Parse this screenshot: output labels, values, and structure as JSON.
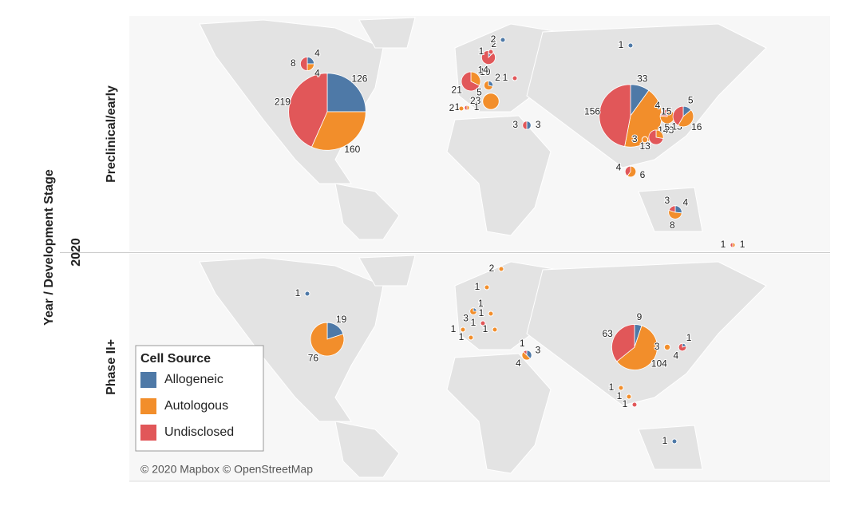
{
  "axis_title": "Year   /  Development Stage",
  "year": "2020",
  "legend": {
    "title": "Cell Source",
    "series": [
      {
        "name": "Allogeneic",
        "color": "#4e79a7"
      },
      {
        "name": "Autologous",
        "color": "#f28e2b"
      },
      {
        "name": "Undisclosed",
        "color": "#e15759"
      }
    ]
  },
  "attribution": "© 2020 Mapbox © OpenStreetMap",
  "panels": [
    {
      "label": "Preclinical/early",
      "pies": [
        {
          "values": [
            126,
            160,
            219
          ]
        },
        {
          "values": [
            4,
            4,
            8
          ]
        },
        {
          "values": [
            null,
            10,
            21
          ]
        },
        {
          "values": [
            2,
            5,
            null
          ]
        },
        {
          "values": [
            2,
            null,
            14
          ]
        },
        {
          "values": [
            2,
            null,
            null
          ]
        },
        {
          "values": [
            null,
            null,
            1
          ]
        },
        {
          "values": [
            null,
            null,
            1
          ]
        },
        {
          "values": [
            null,
            23,
            null
          ]
        },
        {
          "values": [
            null,
            1,
            1
          ]
        },
        {
          "values": [
            null,
            2,
            null
          ]
        },
        {
          "values": [
            3,
            null,
            3
          ]
        },
        {
          "values": [
            33,
            143,
            156
          ]
        },
        {
          "values": [
            null,
            5,
            13
          ]
        },
        {
          "values": [
            null,
            13,
            4
          ]
        },
        {
          "values": [
            5,
            16,
            15
          ]
        },
        {
          "values": [
            null,
            3,
            null
          ]
        },
        {
          "values": [
            null,
            6,
            4
          ]
        },
        {
          "values": [
            4,
            8,
            3
          ]
        },
        {
          "values": [
            null,
            1,
            1
          ]
        },
        {
          "values": [
            1,
            null,
            null
          ]
        }
      ]
    },
    {
      "label": "Phase II+",
      "pies": [
        {
          "values": [
            1,
            null,
            null
          ]
        },
        {
          "values": [
            19,
            76,
            null
          ]
        },
        {
          "values": [
            null,
            2,
            null
          ]
        },
        {
          "values": [
            null,
            1,
            null
          ]
        },
        {
          "values": [
            1,
            3,
            null
          ]
        },
        {
          "values": [
            null,
            1,
            null
          ]
        },
        {
          "values": [
            null,
            null,
            1
          ]
        },
        {
          "values": [
            null,
            1,
            null
          ]
        },
        {
          "values": [
            null,
            1,
            null
          ]
        },
        {
          "values": [
            null,
            1,
            null
          ]
        },
        {
          "values": [
            3,
            4,
            1
          ]
        },
        {
          "values": [
            9,
            104,
            63
          ]
        },
        {
          "values": [
            null,
            3,
            null
          ]
        },
        {
          "values": [
            1,
            null,
            4
          ]
        },
        {
          "values": [
            null,
            1,
            null
          ]
        },
        {
          "values": [
            null,
            null,
            1
          ]
        },
        {
          "values": [
            null,
            1,
            null
          ]
        },
        {
          "values": [
            1,
            null,
            null
          ]
        }
      ]
    }
  ]
}
